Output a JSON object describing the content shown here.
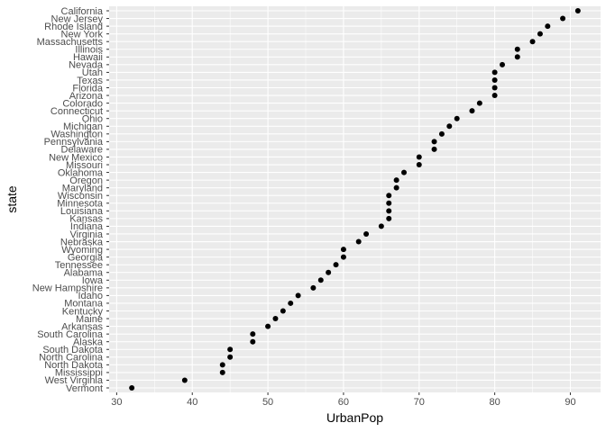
{
  "chart_data": {
    "type": "scatter",
    "xlabel": "UrbanPop",
    "ylabel": "state",
    "xlim": [
      29,
      94
    ],
    "x_ticks": [
      30,
      40,
      50,
      60,
      70,
      80,
      90
    ],
    "grid": true,
    "legend": "none",
    "colors": {
      "panel": "#ebebeb",
      "grid": "#ffffff",
      "point": "#000000"
    },
    "points": [
      {
        "state": "California",
        "value": 91
      },
      {
        "state": "New Jersey",
        "value": 89
      },
      {
        "state": "Rhode Island",
        "value": 87
      },
      {
        "state": "New York",
        "value": 86
      },
      {
        "state": "Massachusetts",
        "value": 85
      },
      {
        "state": "Illinois",
        "value": 83
      },
      {
        "state": "Hawaii",
        "value": 83
      },
      {
        "state": "Nevada",
        "value": 81
      },
      {
        "state": "Utah",
        "value": 80
      },
      {
        "state": "Texas",
        "value": 80
      },
      {
        "state": "Florida",
        "value": 80
      },
      {
        "state": "Arizona",
        "value": 80
      },
      {
        "state": "Colorado",
        "value": 78
      },
      {
        "state": "Connecticut",
        "value": 77
      },
      {
        "state": "Ohio",
        "value": 75
      },
      {
        "state": "Michigan",
        "value": 74
      },
      {
        "state": "Washington",
        "value": 73
      },
      {
        "state": "Pennsylvania",
        "value": 72
      },
      {
        "state": "Delaware",
        "value": 72
      },
      {
        "state": "New Mexico",
        "value": 70
      },
      {
        "state": "Missouri",
        "value": 70
      },
      {
        "state": "Oklahoma",
        "value": 68
      },
      {
        "state": "Oregon",
        "value": 67
      },
      {
        "state": "Maryland",
        "value": 67
      },
      {
        "state": "Wisconsin",
        "value": 66
      },
      {
        "state": "Minnesota",
        "value": 66
      },
      {
        "state": "Louisiana",
        "value": 66
      },
      {
        "state": "Kansas",
        "value": 66
      },
      {
        "state": "Indiana",
        "value": 65
      },
      {
        "state": "Virginia",
        "value": 63
      },
      {
        "state": "Nebraska",
        "value": 62
      },
      {
        "state": "Wyoming",
        "value": 60
      },
      {
        "state": "Georgia",
        "value": 60
      },
      {
        "state": "Tennessee",
        "value": 59
      },
      {
        "state": "Alabama",
        "value": 58
      },
      {
        "state": "Iowa",
        "value": 57
      },
      {
        "state": "New Hampshire",
        "value": 56
      },
      {
        "state": "Idaho",
        "value": 54
      },
      {
        "state": "Montana",
        "value": 53
      },
      {
        "state": "Kentucky",
        "value": 52
      },
      {
        "state": "Maine",
        "value": 51
      },
      {
        "state": "Arkansas",
        "value": 50
      },
      {
        "state": "South Carolina",
        "value": 48
      },
      {
        "state": "Alaska",
        "value": 48
      },
      {
        "state": "South Dakota",
        "value": 45
      },
      {
        "state": "North Carolina",
        "value": 45
      },
      {
        "state": "North Dakota",
        "value": 44
      },
      {
        "state": "Mississippi",
        "value": 44
      },
      {
        "state": "West Virginia",
        "value": 39
      },
      {
        "state": "Vermont",
        "value": 32
      }
    ]
  }
}
